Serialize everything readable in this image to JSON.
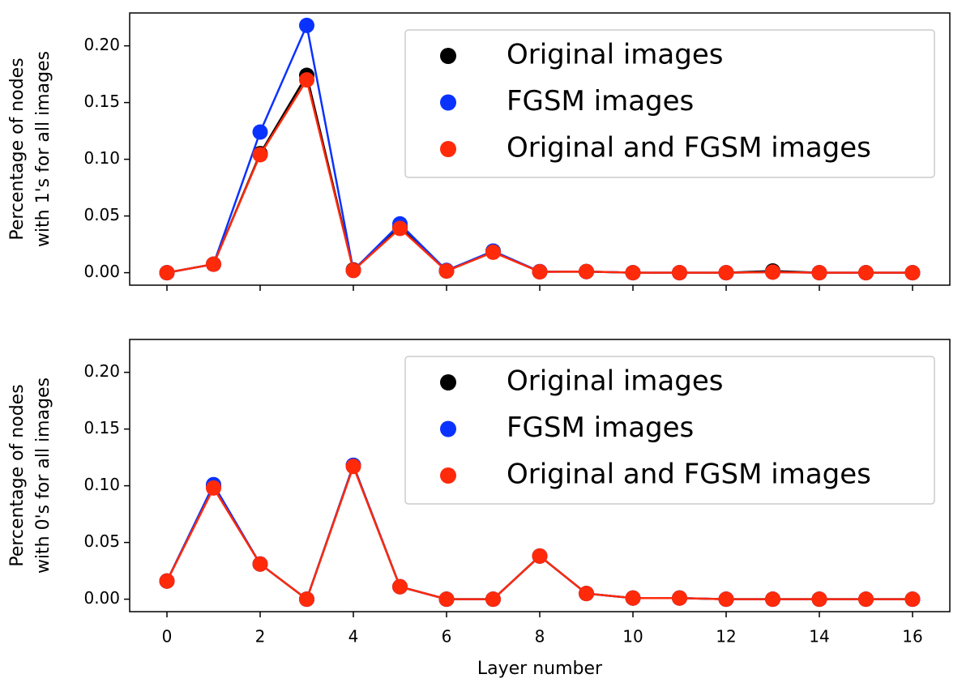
{
  "chart_data": [
    {
      "type": "line",
      "ylabel": [
        "Percentage of nodes",
        "with 1's for all images"
      ],
      "x": [
        0,
        1,
        2,
        3,
        4,
        5,
        6,
        7,
        8,
        9,
        10,
        11,
        12,
        13,
        14,
        15,
        16
      ],
      "xlim": [
        -0.8,
        16.8
      ],
      "xticks": [
        0,
        2,
        4,
        6,
        8,
        10,
        12,
        14,
        16
      ],
      "xtick_labels": false,
      "ylim": [
        -0.011,
        0.229
      ],
      "yticks": [
        {
          "value": 0,
          "label": "0.00"
        },
        {
          "value": 0.05,
          "label": "0.05"
        },
        {
          "value": 0.1,
          "label": "0.10"
        },
        {
          "value": 0.15,
          "label": "0.15"
        },
        {
          "value": 0.2,
          "label": "0.20"
        }
      ],
      "legend": "upper right",
      "series": [
        {
          "name": "Original images",
          "color": "#000000",
          "values": [
            0,
            0.0075,
            0.105,
            0.174,
            0.0025,
            0.04,
            0.0015,
            0.019,
            0.0008,
            0.001,
            0,
            0,
            0,
            0.0015,
            0,
            0,
            0
          ]
        },
        {
          "name": "FGSM images",
          "color": "#0a32ff",
          "values": [
            0,
            0.0075,
            0.124,
            0.218,
            0.002,
            0.043,
            0.002,
            0.019,
            0.001,
            0.001,
            0,
            0,
            0,
            0.0005,
            0,
            0,
            0
          ]
        },
        {
          "name": "Original and FGSM images",
          "color": "#ff2a0a",
          "values": [
            0,
            0.0075,
            0.104,
            0.17,
            0.002,
            0.039,
            0.0015,
            0.018,
            0.0008,
            0.001,
            0,
            0,
            0,
            0.0005,
            0,
            0,
            0
          ]
        }
      ]
    },
    {
      "type": "line",
      "ylabel": [
        "Percentage of nodes",
        "with 0's for all images"
      ],
      "xlabel": "Layer number",
      "x": [
        0,
        1,
        2,
        3,
        4,
        5,
        6,
        7,
        8,
        9,
        10,
        11,
        12,
        13,
        14,
        15,
        16
      ],
      "xlim": [
        -0.8,
        16.8
      ],
      "xticks": [
        0,
        2,
        4,
        6,
        8,
        10,
        12,
        14,
        16
      ],
      "xtick_labels": true,
      "ylim": [
        -0.011,
        0.229
      ],
      "yticks": [
        {
          "value": 0,
          "label": "0.00"
        },
        {
          "value": 0.05,
          "label": "0.05"
        },
        {
          "value": 0.1,
          "label": "0.10"
        },
        {
          "value": 0.15,
          "label": "0.15"
        },
        {
          "value": 0.2,
          "label": "0.20"
        }
      ],
      "legend": "upper right",
      "series": [
        {
          "name": "Original images",
          "color": "#000000",
          "values": [
            0.016,
            0.1,
            0.031,
            0,
            0.118,
            0.011,
            0,
            0,
            0.038,
            0.005,
            0.001,
            0.001,
            0,
            0,
            0,
            0,
            0
          ]
        },
        {
          "name": "FGSM images",
          "color": "#0a32ff",
          "values": [
            0.016,
            0.101,
            0.031,
            0,
            0.118,
            0.011,
            0,
            0,
            0.038,
            0.005,
            0.001,
            0.001,
            0,
            0,
            0,
            0,
            0
          ]
        },
        {
          "name": "Original and FGSM images",
          "color": "#ff2a0a",
          "values": [
            0.016,
            0.098,
            0.031,
            0,
            0.117,
            0.011,
            0,
            0,
            0.038,
            0.005,
            0.001,
            0.001,
            0,
            0,
            0,
            0,
            0
          ]
        }
      ]
    }
  ]
}
